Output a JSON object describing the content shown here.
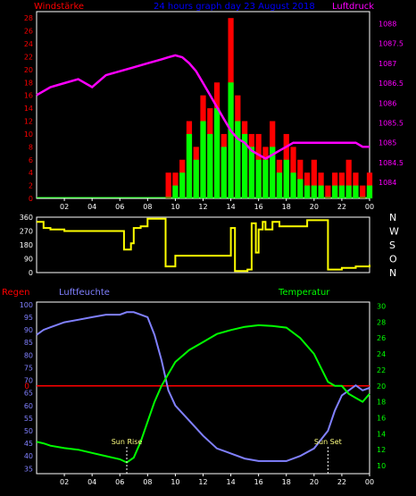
{
  "header": {
    "title": "24 hours graph day  23 August 2018",
    "left_label": "Windstärke",
    "right_label": "Luftdruck"
  },
  "colors": {
    "background": "#000000",
    "frame": "#ffffff",
    "wind_gust": "#ff0000",
    "wind_avg": "#00ff00",
    "pressure": "#ff00ff",
    "direction": "#ffff00",
    "rain": "#ff0000",
    "humidity": "#8080ff",
    "temperature": "#00ff00",
    "title": "#0000ff",
    "hum_axis": "#8080ff",
    "temp_axis": "#00ff00"
  },
  "x_ticks": [
    "02",
    "04",
    "06",
    "08",
    "10",
    "12",
    "14",
    "16",
    "18",
    "20",
    "22",
    "00"
  ],
  "chart_data": [
    {
      "type": "bar",
      "name": "wind-pressure",
      "title": "24 hours graph day  23 August 2018",
      "ylabel_left": "Windstärke",
      "ylabel_right": "Luftdruck",
      "yticks_left": [
        "0",
        "2",
        "4",
        "6",
        "8",
        "10",
        "12",
        "14",
        "16",
        "18",
        "20",
        "22",
        "24",
        "26",
        "28"
      ],
      "yticks_right": [
        "1084",
        "1084.5",
        "1085",
        "1085.5",
        "1086",
        "1086.5",
        "1087",
        "1087.5",
        "1088"
      ],
      "ylim_left": [
        0,
        29
      ],
      "ylim_right": [
        1083.6,
        1088.3
      ],
      "x": [
        0,
        1,
        2,
        3,
        4,
        5,
        6,
        7,
        8,
        9,
        9.5,
        10,
        10.5,
        11,
        11.5,
        12,
        12.5,
        13,
        13.5,
        14,
        14.5,
        15,
        15.5,
        16,
        16.5,
        17,
        17.5,
        18,
        18.5,
        19,
        19.5,
        20,
        20.5,
        21,
        21.5,
        22,
        22.5,
        23,
        23.5,
        24
      ],
      "series": [
        {
          "type": "bar",
          "color": "red",
          "values": [
            0,
            0,
            0,
            0,
            0,
            0,
            0,
            0,
            0,
            0,
            4,
            4,
            6,
            12,
            8,
            16,
            14,
            18,
            10,
            28,
            16,
            12,
            10,
            10,
            8,
            12,
            6,
            10,
            8,
            6,
            4,
            6,
            4,
            2,
            4,
            4,
            6,
            4,
            2,
            4
          ]
        },
        {
          "type": "bar",
          "color": "green",
          "values": [
            0,
            0,
            0,
            0,
            0,
            0,
            0,
            0,
            0,
            0,
            0,
            2,
            4,
            10,
            6,
            12,
            10,
            14,
            8,
            18,
            12,
            10,
            8,
            6,
            6,
            8,
            4,
            6,
            4,
            3,
            2,
            2,
            2,
            0,
            2,
            2,
            2,
            2,
            0,
            2
          ]
        },
        {
          "type": "line",
          "color": "magenta",
          "values": [
            1086.2,
            1086.4,
            1086.5,
            1086.6,
            1086.4,
            1086.7,
            1086.8,
            1086.9,
            1087.0,
            1087.1,
            1087.15,
            1087.2,
            1087.15,
            1087.0,
            1086.8,
            1086.5,
            1086.2,
            1085.9,
            1085.6,
            1085.3,
            1085.1,
            1085.0,
            1084.8,
            1084.7,
            1084.6,
            1084.7,
            1084.8,
            1084.9,
            1085.0,
            1085.0,
            1085.0,
            1085.0,
            1085.0,
            1085.0,
            1085.0,
            1085.0,
            1085.0,
            1085.0,
            1084.9,
            1084.9
          ]
        }
      ]
    },
    {
      "type": "line",
      "name": "wind-direction",
      "yticks_left": [
        "0",
        "90",
        "180",
        "270",
        "360"
      ],
      "ylim": [
        0,
        360
      ],
      "right_labels": [
        "N",
        "W",
        "S",
        "O",
        "N"
      ],
      "x": [
        0,
        0.5,
        1,
        2,
        3,
        4,
        5,
        6,
        6.3,
        6.8,
        7,
        7.5,
        8,
        9,
        9.3,
        10,
        11,
        12,
        13,
        13.2,
        13.8,
        14,
        14.3,
        15,
        15.2,
        15.4,
        15.5,
        15.6,
        15.8,
        16,
        16.3,
        16.5,
        17,
        17.5,
        18,
        19,
        19.5,
        20,
        20.5,
        21,
        21.5,
        22,
        23,
        24
      ],
      "values": [
        330,
        290,
        280,
        270,
        270,
        270,
        270,
        270,
        150,
        190,
        290,
        300,
        350,
        350,
        40,
        110,
        110,
        110,
        110,
        110,
        110,
        290,
        10,
        10,
        20,
        20,
        320,
        320,
        130,
        280,
        330,
        280,
        330,
        300,
        300,
        300,
        340,
        340,
        340,
        20,
        20,
        30,
        40,
        50
      ]
    },
    {
      "type": "line",
      "name": "weather",
      "legend": [
        "Regen",
        "Luftfeuchte",
        "Temperatur"
      ],
      "yticks_left": [
        "35",
        "40",
        "45",
        "50",
        "55",
        "60",
        "65",
        "70",
        "75",
        "80",
        "85",
        "90",
        "95",
        "100"
      ],
      "yticks_right": [
        "10",
        "12",
        "14",
        "16",
        "18",
        "20",
        "22",
        "24",
        "26",
        "28",
        "30"
      ],
      "ylim_left": [
        33,
        101
      ],
      "ylim_right": [
        9,
        30.5
      ],
      "rain_label": "0",
      "annotations": [
        {
          "x": 6.5,
          "label": "Sun Rise"
        },
        {
          "x": 21.0,
          "label": "Sun Set"
        }
      ],
      "x": [
        0,
        0.5,
        1,
        2,
        3,
        4,
        5,
        6,
        6.5,
        7,
        7.5,
        8,
        8.5,
        9,
        9.5,
        10,
        11,
        12,
        13,
        14,
        15,
        16,
        17,
        18,
        19,
        20,
        21,
        21.5,
        22,
        22.5,
        23,
        23.5,
        24
      ],
      "series": [
        {
          "name": "Luftfeuchte",
          "values": [
            88,
            90,
            91,
            93,
            94,
            95,
            96,
            96,
            97,
            97,
            96,
            95,
            88,
            78,
            66,
            60,
            54,
            48,
            43,
            41,
            39,
            38,
            38,
            38,
            40,
            43,
            50,
            58,
            64,
            66,
            68,
            66,
            67
          ]
        },
        {
          "name": "Temperatur",
          "values": [
            13,
            12.8,
            12.5,
            12.2,
            12.0,
            11.6,
            11.2,
            10.8,
            10.4,
            11.0,
            13,
            15.5,
            18,
            20,
            21.5,
            23,
            24.5,
            25.5,
            26.5,
            27,
            27.4,
            27.6,
            27.5,
            27.3,
            26,
            24,
            20.5,
            20,
            20,
            19,
            18.5,
            18,
            19
          ]
        },
        {
          "name": "Regen",
          "values": [
            0,
            0,
            0,
            0,
            0,
            0,
            0,
            0,
            0,
            0,
            0,
            0,
            0,
            0,
            0,
            0,
            0,
            0,
            0,
            0,
            0,
            0,
            0,
            0,
            0,
            0,
            0,
            0,
            0,
            0,
            0,
            0,
            0
          ]
        }
      ]
    }
  ]
}
